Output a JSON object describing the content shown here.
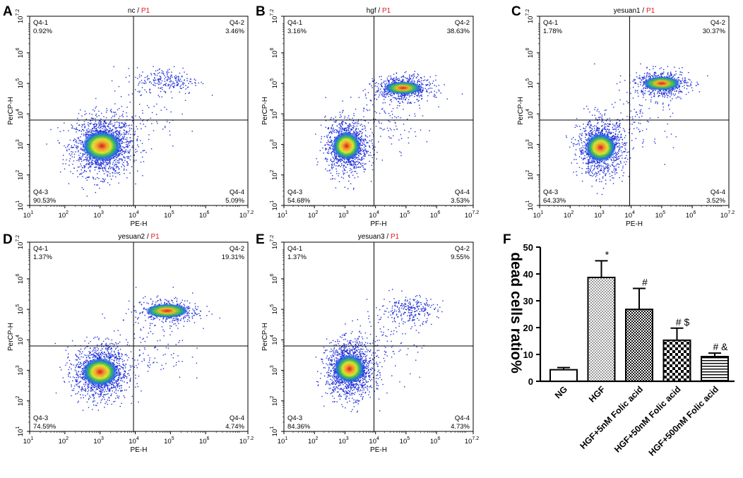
{
  "figure": {
    "panels": [
      {
        "letter": "A",
        "title_sample": "nc",
        "title_sep": " / ",
        "title_gate": "P1",
        "xlabel": "PE-H",
        "ylabel": "PerCP-H",
        "q1_name": "Q4-1",
        "q1_pct": "0.92%",
        "q2_name": "Q4-2",
        "q2_pct": "3.46%",
        "q3_name": "Q4-3",
        "q3_pct": "90.53%",
        "q4_name": "Q4-4",
        "q4_pct": "5.09%"
      },
      {
        "letter": "B",
        "title_sample": "hgf",
        "title_sep": " / ",
        "title_gate": "P1",
        "xlabel": "PF-H",
        "ylabel": "PerCP-H",
        "q1_name": "Q4-1",
        "q1_pct": "3.16%",
        "q2_name": "Q4-2",
        "q2_pct": "38.63%",
        "q3_name": "Q4-3",
        "q3_pct": "54.68%",
        "q4_name": "Q4-4",
        "q4_pct": "3.53%"
      },
      {
        "letter": "C",
        "title_sample": "yesuan1",
        "title_sep": " / ",
        "title_gate": "P1",
        "xlabel": "PE-H",
        "ylabel": "PerCP-H",
        "q1_name": "Q4-1",
        "q1_pct": "1.78%",
        "q2_name": "Q4-2",
        "q2_pct": "30.37%",
        "q3_name": "Q4-3",
        "q3_pct": "64.33%",
        "q4_name": "Q4-4",
        "q4_pct": "3.52%"
      },
      {
        "letter": "D",
        "title_sample": "yesuan2",
        "title_sep": " / ",
        "title_gate": "P1",
        "xlabel": "PE-H",
        "ylabel": "PerCP-H",
        "q1_name": "Q4-1",
        "q1_pct": "1.37%",
        "q2_name": "Q4-2",
        "q2_pct": "19.31%",
        "q3_name": "Q4-3",
        "q3_pct": "74.59%",
        "q4_name": "Q4-4",
        "q4_pct": "4.74%"
      },
      {
        "letter": "E",
        "title_sample": "yesuan3",
        "title_sep": " / ",
        "title_gate": "P1",
        "xlabel": "PE-H",
        "ylabel": "PerCP-H",
        "q1_name": "Q4-1",
        "q1_pct": "1.37%",
        "q2_name": "Q4-2",
        "q2_pct": "9.55%",
        "q3_name": "Q4-3",
        "q3_pct": "84.36%",
        "q4_name": "Q4-4",
        "q4_pct": "4.73%"
      }
    ],
    "tick_labels": [
      "10",
      "1",
      "10",
      "2",
      "10",
      "3",
      "10",
      "4",
      "10",
      "5",
      "10",
      "6",
      "10",
      "7.2"
    ],
    "gate_color": "#e8141c",
    "panel_f_letter": "F"
  },
  "chart_data": [
    {
      "type": "scatter",
      "description_axes": "log-scale flow cytometry density plots",
      "panels": [
        "A",
        "B",
        "C",
        "D",
        "E"
      ],
      "xlim": [
        1,
        7.2
      ],
      "ylim": [
        1,
        7.2
      ],
      "x_scale": "log10 decades",
      "quadrant_gate_x": 3.95,
      "quadrant_gate_y": 3.8,
      "populations": [
        {
          "panel": "A",
          "q4_3": 90.53,
          "q4_2": 3.46,
          "q4_1": 0.92,
          "q4_4": 5.09
        },
        {
          "panel": "B",
          "q4_3": 54.68,
          "q4_2": 38.63,
          "q4_1": 3.16,
          "q4_4": 3.53
        },
        {
          "panel": "C",
          "q4_3": 64.33,
          "q4_2": 30.37,
          "q4_1": 1.78,
          "q4_4": 3.52
        },
        {
          "panel": "D",
          "q4_3": 74.59,
          "q4_2": 19.31,
          "q4_1": 1.37,
          "q4_4": 4.74
        },
        {
          "panel": "E",
          "q4_3": 84.36,
          "q4_2": 9.55,
          "q4_1": 1.37,
          "q4_4": 4.73
        }
      ]
    },
    {
      "type": "bar",
      "panel": "F",
      "ylabel": "dead cells ratio%",
      "ylim": [
        0,
        50
      ],
      "yticks": [
        "0",
        "10",
        "20",
        "30",
        "40",
        "50"
      ],
      "categories": [
        "NG",
        "HGF",
        "HGF+5nM Folic acid",
        "HGF+50nM Folic acid",
        "HGF+500nM Folic acid"
      ],
      "values": [
        4.3,
        38.7,
        26.8,
        15.3,
        9.2
      ],
      "errors": [
        0.8,
        6.2,
        7.8,
        4.5,
        1.3
      ],
      "annotations": [
        "",
        "*",
        "#",
        "# $",
        "# &"
      ],
      "patterns": [
        "white",
        "dots",
        "checker-fine",
        "checker-coarse",
        "horizontal-lines"
      ]
    }
  ]
}
